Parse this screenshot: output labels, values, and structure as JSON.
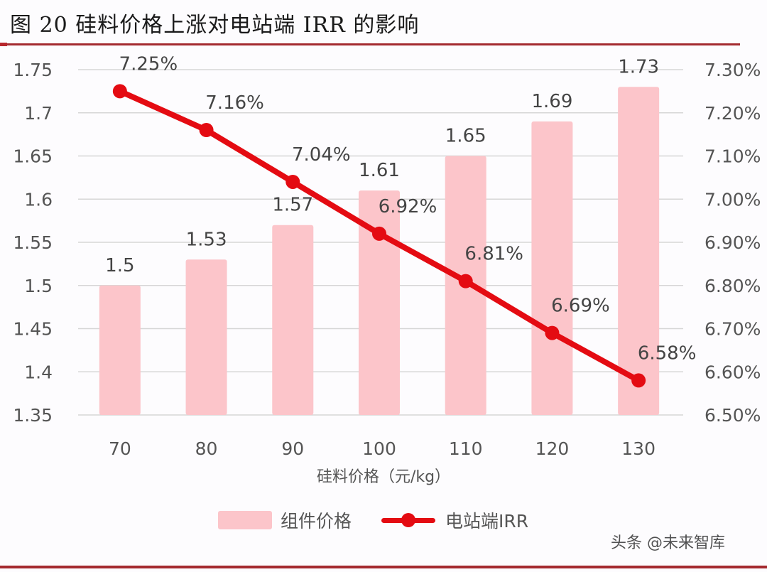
{
  "title": "图 20 硅料价格上涨对电站端 IRR 的影响",
  "watermark": "头条 @未来智库",
  "legend": {
    "bar_label": "组件价格",
    "line_label": "电站端IRR"
  },
  "colors": {
    "bar": "#fcc5ca",
    "line": "#e40b12",
    "rule": "#a42a2f",
    "grid": "#d6d6d6"
  },
  "chart_data": {
    "type": "bar+line",
    "title": "图 20 硅料价格上涨对电站端 IRR 的影响",
    "xlabel": "硅料价格（元/kg）",
    "ylabel_left": "",
    "ylabel_right": "",
    "categories": [
      "70",
      "80",
      "90",
      "100",
      "110",
      "120",
      "130"
    ],
    "series": [
      {
        "name": "组件价格",
        "type": "bar",
        "axis": "left",
        "values": [
          1.5,
          1.53,
          1.57,
          1.61,
          1.65,
          1.69,
          1.73
        ],
        "labels": [
          "1.5",
          "1.53",
          "1.57",
          "1.61",
          "1.65",
          "1.69",
          "1.73"
        ]
      },
      {
        "name": "电站端IRR",
        "type": "line",
        "axis": "right",
        "values": [
          7.25,
          7.16,
          7.04,
          6.92,
          6.81,
          6.69,
          6.58
        ],
        "labels": [
          "7.25%",
          "7.16%",
          "7.04%",
          "6.92%",
          "6.81%",
          "6.69%",
          "6.58%"
        ]
      }
    ],
    "y_left": {
      "range": [
        1.35,
        1.75
      ],
      "ticks": [
        "1.75",
        "1.7",
        "1.65",
        "1.6",
        "1.55",
        "1.5",
        "1.45",
        "1.4",
        "1.35"
      ]
    },
    "y_right": {
      "range": [
        6.5,
        7.3
      ],
      "ticks": [
        "7.30%",
        "7.20%",
        "7.10%",
        "7.00%",
        "6.90%",
        "6.80%",
        "6.70%",
        "6.60%",
        "6.50%"
      ]
    },
    "grid": true,
    "legend_position": "bottom"
  }
}
